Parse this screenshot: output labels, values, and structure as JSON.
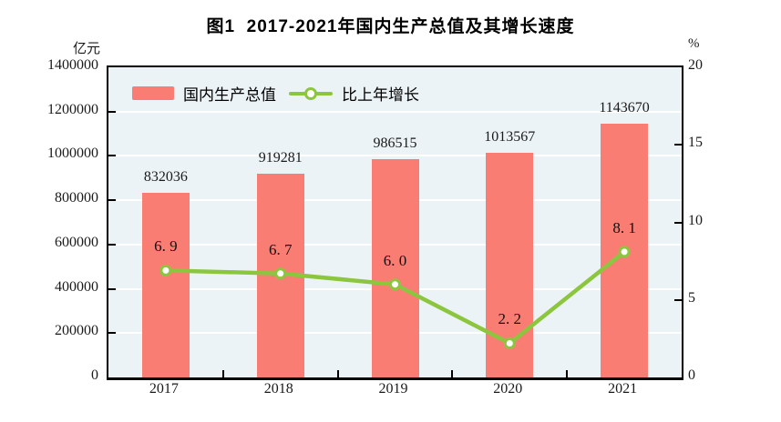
{
  "figure": {
    "title": "图1  2017-2021年国内生产总值及其增长速度",
    "left_axis_unit": "亿元",
    "right_axis_unit": "%"
  },
  "legend": {
    "bar_label": "国内生产总值",
    "line_label": "比上年增长"
  },
  "chart_data": {
    "type": "bar",
    "subtype": "bar+line combo, dual axis",
    "title": "图1  2017-2021年国内生产总值及其增长速度",
    "categories": [
      "2017",
      "2018",
      "2019",
      "2020",
      "2021"
    ],
    "series": [
      {
        "name": "国内生产总值",
        "type": "bar",
        "axis": "left",
        "unit": "亿元",
        "values": [
          832036,
          919281,
          986515,
          1013567,
          1143670
        ],
        "labels": [
          "832036",
          "919281",
          "986515",
          "1013567",
          "1143670"
        ],
        "color": "#fa7d73"
      },
      {
        "name": "比上年增长",
        "type": "line",
        "axis": "right",
        "unit": "%",
        "values": [
          6.9,
          6.7,
          6.0,
          2.2,
          8.1
        ],
        "labels": [
          "6. 9",
          "6. 7",
          "6. 0",
          "2. 2",
          "8. 1"
        ],
        "color": "#8cc63e",
        "marker": "circle-white-fill-green-ring"
      }
    ],
    "left_axis": {
      "unit": "亿元",
      "min": 0,
      "max": 1400000,
      "tick_step": 200000,
      "ticks": [
        "0",
        "200000",
        "400000",
        "600000",
        "800000",
        "1000000",
        "1200000",
        "1400000"
      ]
    },
    "right_axis": {
      "unit": "%",
      "min": 0,
      "max": 20,
      "tick_step": 5,
      "ticks": [
        "0",
        "5",
        "10",
        "15",
        "20"
      ]
    },
    "grid": "horizontal white gridlines at left-axis ticks",
    "legend_position": "top-left inside plot",
    "colors": {
      "plot_background": "#ecf3f6",
      "gridline": "#ffffff",
      "axis_frame": "#000000",
      "bar": "#fa7d73",
      "line": "#8cc63e",
      "marker_fill": "#ffffff",
      "text": "#1a1a1a"
    }
  }
}
